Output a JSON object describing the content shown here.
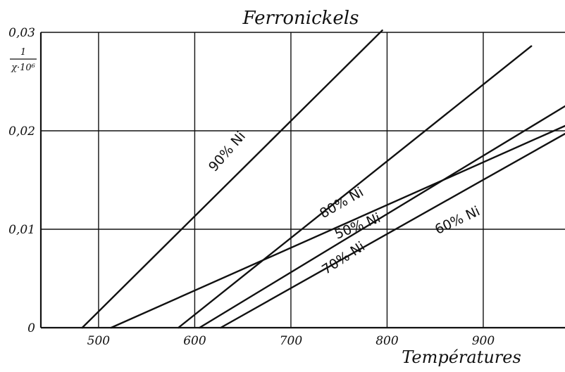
{
  "chart_data": {
    "type": "line",
    "title": "Ferronickels",
    "xlabel": "Températures",
    "ylabel_numerator": "1",
    "ylabel_denominator": "χ·10⁶",
    "xlim": [
      440,
      985
    ],
    "ylim": [
      0,
      0.03
    ],
    "x_ticks": [
      500,
      600,
      700,
      800,
      900
    ],
    "x_tick_labels": [
      "500",
      "600",
      "700",
      "800",
      "900"
    ],
    "y_ticks": [
      0,
      0.01,
      0.02,
      0.03
    ],
    "y_tick_labels": [
      "0",
      "0,01",
      "0,02",
      "0,03"
    ],
    "grid": true,
    "series": [
      {
        "name": "90% Ni",
        "x": [
          483,
          795
        ],
        "y": [
          0,
          0.0302
        ]
      },
      {
        "name": "80% Ni",
        "x": [
          583,
          950
        ],
        "y": [
          0,
          0.0286
        ]
      },
      {
        "name": "50% Ni",
        "x": [
          513,
          985
        ],
        "y": [
          0,
          0.0205
        ]
      },
      {
        "name": "70% Ni",
        "x": [
          605,
          985
        ],
        "y": [
          0,
          0.0225
        ]
      },
      {
        "name": "60% Ni",
        "x": [
          627,
          985
        ],
        "y": [
          0,
          0.0197
        ]
      }
    ],
    "labels": [
      {
        "text": "90% Ni",
        "x": 637,
        "y": 0.0176,
        "angle": -49
      },
      {
        "text": "80% Ni",
        "x": 755,
        "y": 0.0123,
        "angle": -30
      },
      {
        "text": "50% Ni",
        "x": 771,
        "y": 0.0099,
        "angle": -22
      },
      {
        "text": "70% Ni",
        "x": 757,
        "y": 0.0067,
        "angle": -33
      },
      {
        "text": "60% Ni",
        "x": 875,
        "y": 0.0105,
        "angle": -25
      }
    ]
  }
}
